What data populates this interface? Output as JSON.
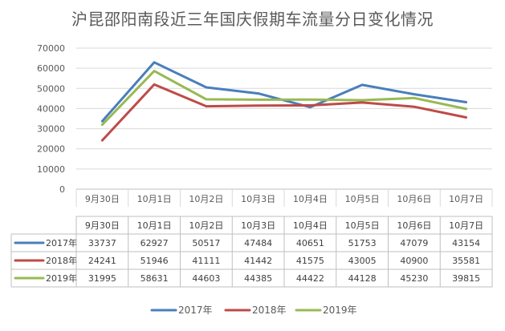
{
  "chart_data": {
    "type": "line",
    "title": "沪昆邵阳南段近三年国庆假期车流量分日变化情况",
    "categories": [
      "9月30日",
      "10月1日",
      "10月2日",
      "10月3日",
      "10月4日",
      "10月5日",
      "10月6日",
      "10月7日"
    ],
    "ylim": [
      0,
      70000
    ],
    "yticks": [
      "0",
      "10000",
      "20000",
      "30000",
      "40000",
      "50000",
      "60000",
      "70000"
    ],
    "grid": true,
    "legend_position": "bottom",
    "series": [
      {
        "name": "2017年",
        "color": "#4a7ebb",
        "values": [
          33737,
          62927,
          50517,
          47484,
          40651,
          51753,
          47079,
          43154
        ]
      },
      {
        "name": "2018年",
        "color": "#be4b48",
        "values": [
          24241,
          51946,
          41111,
          41442,
          41575,
          43005,
          40900,
          35581
        ]
      },
      {
        "name": "2019年",
        "color": "#98b954",
        "values": [
          31995,
          58631,
          44603,
          44385,
          44422,
          44128,
          45230,
          39815
        ]
      }
    ]
  }
}
